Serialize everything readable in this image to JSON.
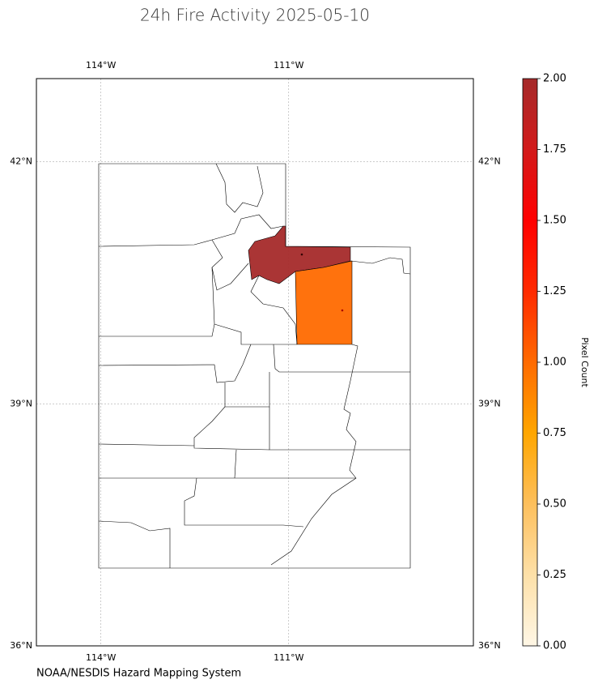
{
  "chart_data": {
    "type": "map",
    "title": "24h Fire Activity 2025-05-10",
    "credit": "NOAA/NESDIS Hazard Mapping System",
    "xlim": [
      -115.03,
      -108.05
    ],
    "ylim": [
      36,
      43.03
    ],
    "xticks": [
      {
        "value": -114,
        "label": "114°W"
      },
      {
        "value": -111,
        "label": "111°W"
      }
    ],
    "yticks": [
      {
        "value": 36,
        "label": "36°N"
      },
      {
        "value": 39,
        "label": "39°N"
      },
      {
        "value": 42,
        "label": "42°N"
      }
    ],
    "grid": true,
    "county_values": [
      2,
      1
    ],
    "colorbar": {
      "label": "Pixel Count",
      "lim": [
        0,
        2
      ],
      "colors": [
        "#fff7e6",
        "#fde0a8",
        "#fdbf5c",
        "#ffa600",
        "#ff6a00",
        "#ff2a00",
        "#ff0000",
        "#d21a1a",
        "#a52a2a"
      ],
      "ticks": [
        {
          "value": 0,
          "label": "0.00"
        },
        {
          "value": 0.25,
          "label": "0.25"
        },
        {
          "value": 0.5,
          "label": "0.50"
        },
        {
          "value": 0.75,
          "label": "0.75"
        },
        {
          "value": 1,
          "label": "1.00"
        },
        {
          "value": 1.25,
          "label": "1.25"
        },
        {
          "value": 1.5,
          "label": "1.50"
        },
        {
          "value": 1.75,
          "label": "1.75"
        },
        {
          "value": 2,
          "label": "2.00"
        }
      ]
    }
  }
}
